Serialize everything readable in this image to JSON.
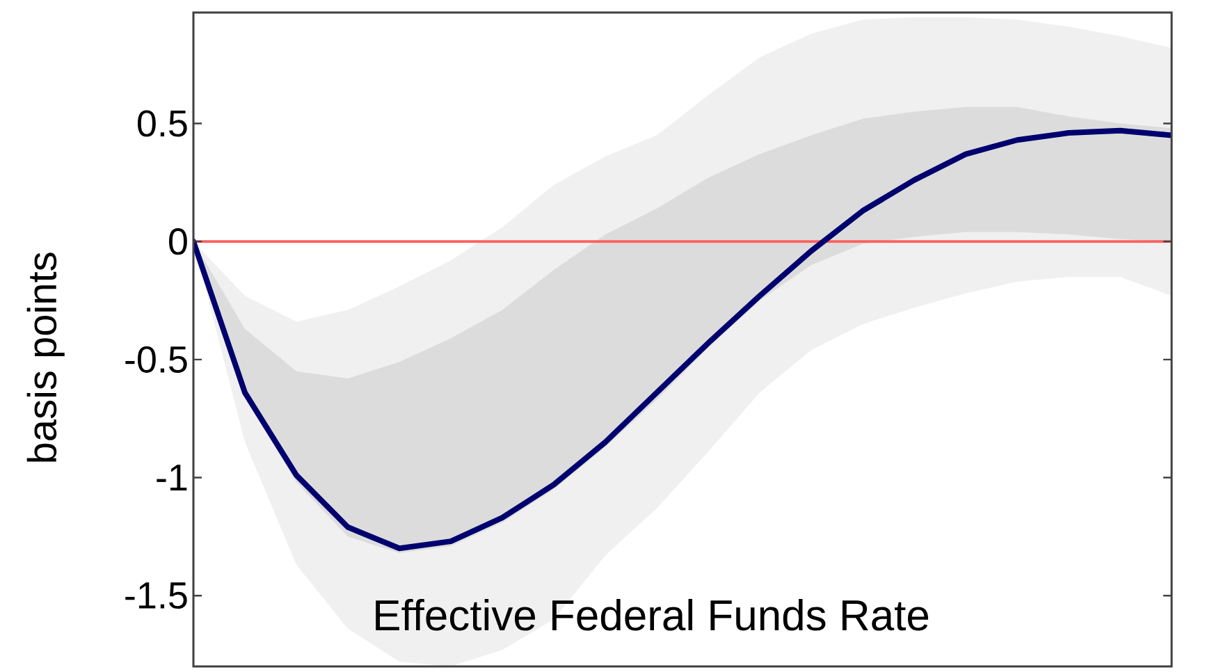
{
  "chart_data": {
    "type": "line",
    "title": "Effective Federal Funds Rate",
    "ylabel": "basis points",
    "categories": [
      null,
      null,
      null,
      null,
      null,
      null,
      null,
      null,
      null,
      null,
      null,
      null,
      null,
      null,
      null,
      null,
      null,
      null,
      null,
      null
    ],
    "series": [
      {
        "color": "#f0f0f0",
        "values": [
          null,
          null,
          null,
          null,
          null,
          null,
          null,
          null,
          null,
          null,
          null,
          null,
          null,
          null,
          null,
          null,
          null,
          null,
          null,
          null
        ],
        "lower": [
          0,
          -0.85,
          -1.37,
          -1.64,
          -1.78,
          -1.8,
          -1.73,
          -1.6,
          -1.33,
          -1.13,
          -0.89,
          -0.64,
          -0.46,
          -0.35,
          -0.28,
          -0.22,
          -0.17,
          -0.15,
          -0.15,
          -0.23
        ],
        "upper": [
          0,
          -0.23,
          -0.34,
          -0.29,
          -0.19,
          -0.08,
          0.06,
          0.24,
          0.36,
          0.45,
          0.62,
          0.78,
          0.88,
          0.94,
          0.95,
          0.95,
          0.94,
          0.91,
          0.87,
          0.82
        ]
      },
      {
        "color": "#dcdcdc",
        "values": [
          null,
          null,
          null,
          null,
          null,
          null,
          null,
          null,
          null,
          null,
          null,
          null,
          null,
          null,
          null,
          null,
          null,
          null,
          null,
          null
        ],
        "lower": [
          0,
          -0.66,
          -1.02,
          -1.25,
          -1.32,
          -1.29,
          -1.19,
          -1.05,
          -0.87,
          -0.67,
          -0.45,
          -0.25,
          -0.1,
          -0.01,
          0.02,
          0.04,
          0.04,
          0.03,
          0.01,
          0
        ],
        "upper": [
          0,
          -0.37,
          -0.55,
          -0.58,
          -0.51,
          -0.41,
          -0.29,
          -0.12,
          0.03,
          0.14,
          0.27,
          0.37,
          0.45,
          0.52,
          0.55,
          0.57,
          0.57,
          0.53,
          0.5,
          0.48
        ]
      },
      {
        "color": "#00006e",
        "values": [
          0,
          -0.64,
          -0.99,
          -1.21,
          -1.3,
          -1.27,
          -1.17,
          -1.03,
          -0.85,
          -0.64,
          -0.43,
          -0.23,
          -0.04,
          0.13,
          0.26,
          0.37,
          0.43,
          0.46,
          0.47,
          0.45
        ]
      }
    ],
    "ylim": [
      -1.8,
      0.97
    ],
    "yticks": [
      -1.5,
      -1,
      -0.5,
      0,
      0.5
    ],
    "ref_lines": [
      {
        "axis": "y",
        "value": 0,
        "color": "#ff6060"
      }
    ],
    "tick_labels": "y",
    "marker": "none",
    "line_style": "solid"
  }
}
